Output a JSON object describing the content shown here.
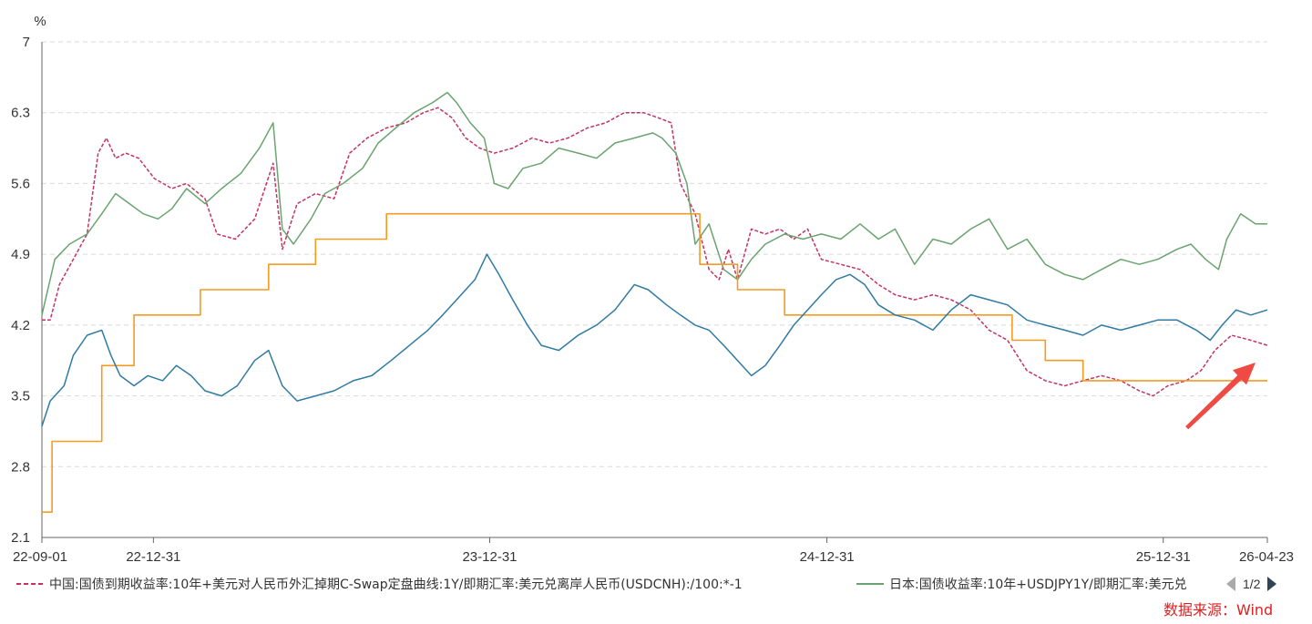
{
  "chart_data": {
    "type": "line",
    "y_unit": "%",
    "ylim": [
      2.1,
      7.0
    ],
    "yticks": [
      "2.1",
      "2.8",
      "3.5",
      "4.2",
      "4.9",
      "5.6",
      "6.3",
      "7"
    ],
    "xticks": [
      {
        "label": "22-09-01",
        "date": "2022-09-01"
      },
      {
        "label": "22-12-31",
        "date": "2022-12-31"
      },
      {
        "label": "23-12-31",
        "date": "2023-12-31"
      },
      {
        "label": "24-12-31",
        "date": "2024-12-31"
      },
      {
        "label": "25-12-31",
        "date": "2025-12-31"
      },
      {
        "label": "26-04-23",
        "date": "2026-04-23"
      }
    ],
    "grid": true,
    "legend_position": "bottom",
    "series": [
      {
        "name": "中国:国债到期收益率:10年+美元对人民币外汇掉期C-Swap定盘曲线:1Y/即期汇率:美元兑离岸人民币(USDCNH):/100:*-1",
        "color": "#c23560",
        "style": "dashed",
        "points": [
          [
            "2022-09-01",
            4.25
          ],
          [
            "2022-09-10",
            4.25
          ],
          [
            "2022-09-20",
            4.6
          ],
          [
            "2022-10-05",
            4.85
          ],
          [
            "2022-10-20",
            5.1
          ],
          [
            "2022-11-01",
            5.9
          ],
          [
            "2022-11-10",
            6.05
          ],
          [
            "2022-11-20",
            5.85
          ],
          [
            "2022-12-01",
            5.9
          ],
          [
            "2022-12-15",
            5.85
          ],
          [
            "2023-01-01",
            5.65
          ],
          [
            "2023-01-20",
            5.55
          ],
          [
            "2023-02-05",
            5.6
          ],
          [
            "2023-02-25",
            5.45
          ],
          [
            "2023-03-10",
            5.1
          ],
          [
            "2023-03-30",
            5.05
          ],
          [
            "2023-04-20",
            5.25
          ],
          [
            "2023-05-10",
            5.8
          ],
          [
            "2023-05-20",
            4.95
          ],
          [
            "2023-06-05",
            5.4
          ],
          [
            "2023-06-25",
            5.5
          ],
          [
            "2023-07-15",
            5.45
          ],
          [
            "2023-08-01",
            5.9
          ],
          [
            "2023-08-20",
            6.05
          ],
          [
            "2023-09-10",
            6.15
          ],
          [
            "2023-10-01",
            6.2
          ],
          [
            "2023-10-20",
            6.3
          ],
          [
            "2023-11-05",
            6.35
          ],
          [
            "2023-11-20",
            6.25
          ],
          [
            "2023-12-05",
            6.05
          ],
          [
            "2023-12-20",
            5.95
          ],
          [
            "2024-01-05",
            5.9
          ],
          [
            "2024-01-25",
            5.95
          ],
          [
            "2024-02-15",
            6.05
          ],
          [
            "2024-03-05",
            6.0
          ],
          [
            "2024-03-25",
            6.05
          ],
          [
            "2024-04-15",
            6.15
          ],
          [
            "2024-05-05",
            6.2
          ],
          [
            "2024-05-25",
            6.3
          ],
          [
            "2024-06-15",
            6.3
          ],
          [
            "2024-07-01",
            6.25
          ],
          [
            "2024-07-15",
            6.2
          ],
          [
            "2024-07-25",
            5.6
          ],
          [
            "2024-08-10",
            5.3
          ],
          [
            "2024-08-25",
            4.75
          ],
          [
            "2024-09-05",
            4.65
          ],
          [
            "2024-09-15",
            4.95
          ],
          [
            "2024-09-25",
            4.65
          ],
          [
            "2024-10-10",
            5.15
          ],
          [
            "2024-10-25",
            5.1
          ],
          [
            "2024-11-10",
            5.15
          ],
          [
            "2024-11-25",
            5.05
          ],
          [
            "2024-12-10",
            5.15
          ],
          [
            "2024-12-25",
            4.85
          ],
          [
            "2025-01-15",
            4.8
          ],
          [
            "2025-02-05",
            4.75
          ],
          [
            "2025-02-25",
            4.6
          ],
          [
            "2025-03-15",
            4.5
          ],
          [
            "2025-04-05",
            4.45
          ],
          [
            "2025-04-25",
            4.5
          ],
          [
            "2025-05-15",
            4.45
          ],
          [
            "2025-06-05",
            4.35
          ],
          [
            "2025-06-25",
            4.15
          ],
          [
            "2025-07-15",
            4.05
          ],
          [
            "2025-08-05",
            3.75
          ],
          [
            "2025-08-25",
            3.65
          ],
          [
            "2025-09-15",
            3.6
          ],
          [
            "2025-10-05",
            3.65
          ],
          [
            "2025-10-25",
            3.7
          ],
          [
            "2025-11-15",
            3.65
          ],
          [
            "2025-12-05",
            3.55
          ],
          [
            "2025-12-20",
            3.5
          ],
          [
            "2026-01-05",
            3.6
          ],
          [
            "2026-01-25",
            3.65
          ],
          [
            "2026-02-10",
            3.75
          ],
          [
            "2026-02-25",
            3.95
          ],
          [
            "2026-03-15",
            4.1
          ],
          [
            "2026-04-05",
            4.05
          ],
          [
            "2026-04-23",
            4.0
          ]
        ]
      },
      {
        "name": "日本:国债收益率:10年+USDJPY1Y/即期汇率:美元兑",
        "color": "#6aa36f",
        "style": "solid",
        "points": [
          [
            "2022-09-01",
            4.3
          ],
          [
            "2022-09-15",
            4.85
          ],
          [
            "2022-10-01",
            5.0
          ],
          [
            "2022-10-20",
            5.1
          ],
          [
            "2022-11-05",
            5.3
          ],
          [
            "2022-11-20",
            5.5
          ],
          [
            "2022-12-05",
            5.4
          ],
          [
            "2022-12-20",
            5.3
          ],
          [
            "2023-01-05",
            5.25
          ],
          [
            "2023-01-20",
            5.35
          ],
          [
            "2023-02-05",
            5.55
          ],
          [
            "2023-02-25",
            5.4
          ],
          [
            "2023-03-15",
            5.55
          ],
          [
            "2023-04-05",
            5.7
          ],
          [
            "2023-04-25",
            5.95
          ],
          [
            "2023-05-10",
            6.2
          ],
          [
            "2023-05-20",
            5.15
          ],
          [
            "2023-06-01",
            5.0
          ],
          [
            "2023-06-20",
            5.25
          ],
          [
            "2023-07-05",
            5.5
          ],
          [
            "2023-07-25",
            5.6
          ],
          [
            "2023-08-15",
            5.75
          ],
          [
            "2023-09-01",
            6.0
          ],
          [
            "2023-09-20",
            6.15
          ],
          [
            "2023-10-10",
            6.3
          ],
          [
            "2023-10-30",
            6.4
          ],
          [
            "2023-11-15",
            6.5
          ],
          [
            "2023-11-25",
            6.4
          ],
          [
            "2023-12-10",
            6.2
          ],
          [
            "2023-12-25",
            6.05
          ],
          [
            "2024-01-05",
            5.6
          ],
          [
            "2024-01-20",
            5.55
          ],
          [
            "2024-02-05",
            5.75
          ],
          [
            "2024-02-25",
            5.8
          ],
          [
            "2024-03-15",
            5.95
          ],
          [
            "2024-04-05",
            5.9
          ],
          [
            "2024-04-25",
            5.85
          ],
          [
            "2024-05-15",
            6.0
          ],
          [
            "2024-06-05",
            6.05
          ],
          [
            "2024-06-25",
            6.1
          ],
          [
            "2024-07-05",
            6.05
          ],
          [
            "2024-07-20",
            5.9
          ],
          [
            "2024-08-01",
            5.6
          ],
          [
            "2024-08-10",
            5.0
          ],
          [
            "2024-08-25",
            5.2
          ],
          [
            "2024-09-10",
            4.75
          ],
          [
            "2024-09-25",
            4.65
          ],
          [
            "2024-10-10",
            4.85
          ],
          [
            "2024-10-25",
            5.0
          ],
          [
            "2024-11-15",
            5.1
          ],
          [
            "2024-12-05",
            5.05
          ],
          [
            "2024-12-25",
            5.1
          ],
          [
            "2025-01-15",
            5.05
          ],
          [
            "2025-02-05",
            5.2
          ],
          [
            "2025-02-25",
            5.05
          ],
          [
            "2025-03-15",
            5.15
          ],
          [
            "2025-04-05",
            4.8
          ],
          [
            "2025-04-25",
            5.05
          ],
          [
            "2025-05-15",
            5.0
          ],
          [
            "2025-06-05",
            5.15
          ],
          [
            "2025-06-25",
            5.25
          ],
          [
            "2025-07-15",
            4.95
          ],
          [
            "2025-08-05",
            5.05
          ],
          [
            "2025-08-25",
            4.8
          ],
          [
            "2025-09-15",
            4.7
          ],
          [
            "2025-10-05",
            4.65
          ],
          [
            "2025-10-25",
            4.75
          ],
          [
            "2025-11-15",
            4.85
          ],
          [
            "2025-12-05",
            4.8
          ],
          [
            "2025-12-25",
            4.85
          ],
          [
            "2026-01-15",
            4.95
          ],
          [
            "2026-01-30",
            5.0
          ],
          [
            "2026-02-15",
            4.85
          ],
          [
            "2026-03-01",
            4.75
          ],
          [
            "2026-03-10",
            5.05
          ],
          [
            "2026-03-25",
            5.3
          ],
          [
            "2026-04-10",
            5.2
          ],
          [
            "2026-04-23",
            5.2
          ]
        ]
      },
      {
        "color": "#f59a23",
        "style": "step",
        "points": [
          [
            "2022-09-01",
            2.35
          ],
          [
            "2022-09-12",
            2.35
          ],
          [
            "2022-09-12",
            3.05
          ],
          [
            "2022-11-05",
            3.05
          ],
          [
            "2022-11-05",
            3.8
          ],
          [
            "2022-12-10",
            3.8
          ],
          [
            "2022-12-10",
            4.3
          ],
          [
            "2023-02-20",
            4.3
          ],
          [
            "2023-02-20",
            4.55
          ],
          [
            "2023-05-05",
            4.55
          ],
          [
            "2023-05-05",
            4.8
          ],
          [
            "2023-06-25",
            4.8
          ],
          [
            "2023-06-25",
            5.05
          ],
          [
            "2023-09-10",
            5.05
          ],
          [
            "2023-09-10",
            5.3
          ],
          [
            "2024-08-15",
            5.3
          ],
          [
            "2024-08-15",
            4.8
          ],
          [
            "2024-09-25",
            4.8
          ],
          [
            "2024-09-25",
            4.55
          ],
          [
            "2024-11-15",
            4.55
          ],
          [
            "2024-11-15",
            4.3
          ],
          [
            "2025-07-20",
            4.3
          ],
          [
            "2025-07-20",
            4.05
          ],
          [
            "2025-08-25",
            4.05
          ],
          [
            "2025-08-25",
            3.85
          ],
          [
            "2025-10-05",
            3.85
          ],
          [
            "2025-10-05",
            3.65
          ],
          [
            "2026-04-23",
            3.65
          ]
        ]
      },
      {
        "color": "#2f7ba1",
        "style": "solid",
        "points": [
          [
            "2022-09-01",
            3.2
          ],
          [
            "2022-09-10",
            3.45
          ],
          [
            "2022-09-25",
            3.6
          ],
          [
            "2022-10-05",
            3.9
          ],
          [
            "2022-10-20",
            4.1
          ],
          [
            "2022-11-05",
            4.15
          ],
          [
            "2022-11-15",
            3.9
          ],
          [
            "2022-11-25",
            3.7
          ],
          [
            "2022-12-10",
            3.6
          ],
          [
            "2022-12-25",
            3.7
          ],
          [
            "2023-01-10",
            3.65
          ],
          [
            "2023-01-25",
            3.8
          ],
          [
            "2023-02-10",
            3.7
          ],
          [
            "2023-02-25",
            3.55
          ],
          [
            "2023-03-15",
            3.5
          ],
          [
            "2023-04-01",
            3.6
          ],
          [
            "2023-04-20",
            3.85
          ],
          [
            "2023-05-05",
            3.95
          ],
          [
            "2023-05-20",
            3.6
          ],
          [
            "2023-06-05",
            3.45
          ],
          [
            "2023-06-25",
            3.5
          ],
          [
            "2023-07-15",
            3.55
          ],
          [
            "2023-08-05",
            3.65
          ],
          [
            "2023-08-25",
            3.7
          ],
          [
            "2023-09-15",
            3.85
          ],
          [
            "2023-10-05",
            4.0
          ],
          [
            "2023-10-25",
            4.15
          ],
          [
            "2023-11-10",
            4.3
          ],
          [
            "2023-11-30",
            4.5
          ],
          [
            "2023-12-15",
            4.65
          ],
          [
            "2023-12-28",
            4.9
          ],
          [
            "2024-01-10",
            4.7
          ],
          [
            "2024-01-25",
            4.45
          ],
          [
            "2024-02-10",
            4.2
          ],
          [
            "2024-02-25",
            4.0
          ],
          [
            "2024-03-15",
            3.95
          ],
          [
            "2024-04-05",
            4.1
          ],
          [
            "2024-04-25",
            4.2
          ],
          [
            "2024-05-15",
            4.35
          ],
          [
            "2024-06-05",
            4.6
          ],
          [
            "2024-06-20",
            4.55
          ],
          [
            "2024-07-10",
            4.4
          ],
          [
            "2024-07-25",
            4.3
          ],
          [
            "2024-08-10",
            4.2
          ],
          [
            "2024-08-25",
            4.15
          ],
          [
            "2024-09-10",
            4.0
          ],
          [
            "2024-09-25",
            3.85
          ],
          [
            "2024-10-10",
            3.7
          ],
          [
            "2024-10-25",
            3.8
          ],
          [
            "2024-11-10",
            4.0
          ],
          [
            "2024-11-25",
            4.2
          ],
          [
            "2024-12-10",
            4.35
          ],
          [
            "2024-12-25",
            4.5
          ],
          [
            "2025-01-10",
            4.65
          ],
          [
            "2025-01-25",
            4.7
          ],
          [
            "2025-02-10",
            4.6
          ],
          [
            "2025-02-25",
            4.4
          ],
          [
            "2025-03-15",
            4.3
          ],
          [
            "2025-04-05",
            4.25
          ],
          [
            "2025-04-25",
            4.15
          ],
          [
            "2025-05-15",
            4.35
          ],
          [
            "2025-06-05",
            4.5
          ],
          [
            "2025-06-25",
            4.45
          ],
          [
            "2025-07-15",
            4.4
          ],
          [
            "2025-08-05",
            4.25
          ],
          [
            "2025-08-25",
            4.2
          ],
          [
            "2025-09-15",
            4.15
          ],
          [
            "2025-10-05",
            4.1
          ],
          [
            "2025-10-25",
            4.2
          ],
          [
            "2025-11-15",
            4.15
          ],
          [
            "2025-12-05",
            4.2
          ],
          [
            "2025-12-25",
            4.25
          ],
          [
            "2026-01-15",
            4.25
          ],
          [
            "2026-02-05",
            4.15
          ],
          [
            "2026-02-20",
            4.05
          ],
          [
            "2026-03-05",
            4.2
          ],
          [
            "2026-03-20",
            4.35
          ],
          [
            "2026-04-05",
            4.3
          ],
          [
            "2026-04-23",
            4.35
          ]
        ]
      }
    ]
  },
  "legend": {
    "items": [
      {
        "label": "中国:国债到期收益率:10年+美元对人民币外汇掉期C-Swap定盘曲线:1Y/即期汇率:美元兑离岸人民币(USDCNH):/100:*-1",
        "color": "#c23560",
        "style": "dashed"
      },
      {
        "label": "日本:国债收益率:10年+USDJPY1Y/即期汇率:美元兑",
        "color": "#6aa36f",
        "style": "solid"
      }
    ],
    "pager": "1/2"
  },
  "source": "数据来源：Wind",
  "annotation_arrow_color": "#ef4a43"
}
